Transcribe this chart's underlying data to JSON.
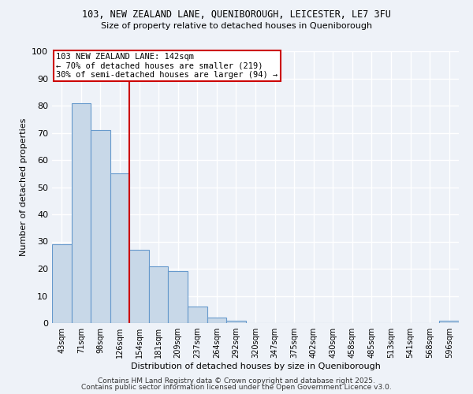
{
  "title1": "103, NEW ZEALAND LANE, QUENIBOROUGH, LEICESTER, LE7 3FU",
  "title2": "Size of property relative to detached houses in Queniborough",
  "xlabel": "Distribution of detached houses by size in Queniborough",
  "ylabel": "Number of detached properties",
  "bins": [
    43,
    71,
    98,
    126,
    154,
    181,
    209,
    237,
    264,
    292,
    320,
    347,
    375,
    402,
    430,
    458,
    485,
    513,
    541,
    568,
    596
  ],
  "values": [
    29,
    81,
    71,
    55,
    27,
    21,
    19,
    6,
    2,
    1,
    0,
    0,
    0,
    0,
    0,
    0,
    0,
    0,
    0,
    0,
    1
  ],
  "bar_color": "#c8d8e8",
  "bar_edge_color": "#6699cc",
  "property_size": 142,
  "annotation_text": "103 NEW ZEALAND LANE: 142sqm\n← 70% of detached houses are smaller (219)\n30% of semi-detached houses are larger (94) →",
  "annotation_box_color": "#ffffff",
  "annotation_box_edge_color": "#cc0000",
  "vline_color": "#cc0000",
  "bg_color": "#eef2f8",
  "grid_color": "#ffffff",
  "footer1": "Contains HM Land Registry data © Crown copyright and database right 2025.",
  "footer2": "Contains public sector information licensed under the Open Government Licence v3.0.",
  "ylim": [
    0,
    100
  ],
  "yticks": [
    0,
    10,
    20,
    30,
    40,
    50,
    60,
    70,
    80,
    90,
    100
  ]
}
